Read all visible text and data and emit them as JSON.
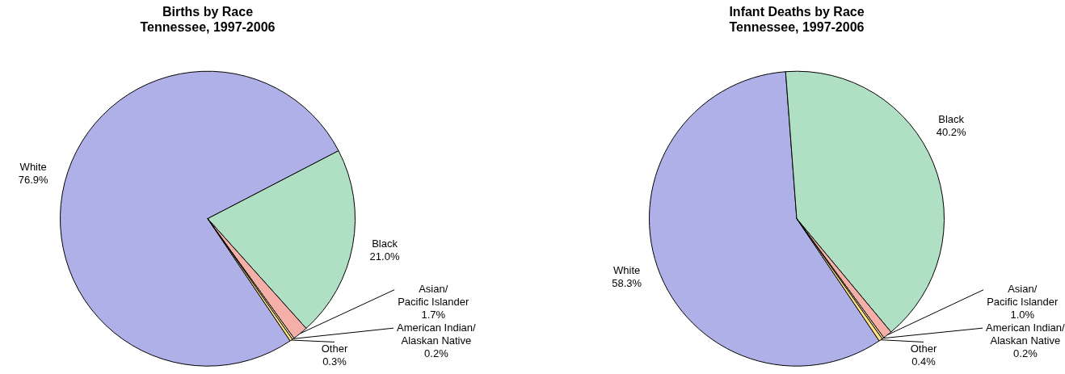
{
  "chart_data": [
    {
      "type": "pie",
      "title": "Births by Race\nTennessee, 1997-2006",
      "categories": [
        "White",
        "Black",
        "Asian/Pacific Islander",
        "American Indian/Alaskan Native",
        "Other"
      ],
      "values": [
        76.9,
        21.0,
        1.7,
        0.2,
        0.3
      ],
      "colors": [
        "#b0b0e8",
        "#b0e0c4",
        "#f4b0a8",
        "#fff0b0",
        "#ffe080"
      ],
      "value_labels": [
        "76.9%",
        "21.0%",
        "1.7%",
        "0.2%",
        "0.3%"
      ]
    },
    {
      "type": "pie",
      "title": "Infant Deaths by Race\nTennessee, 1997-2006",
      "categories": [
        "White",
        "Black",
        "Asian/Pacific Islander",
        "American Indian/Alaskan Native",
        "Other"
      ],
      "values": [
        58.3,
        40.2,
        1.0,
        0.2,
        0.4
      ],
      "colors": [
        "#b0b0e8",
        "#b0e0c4",
        "#f4b0a8",
        "#fff0b0",
        "#ffe080"
      ],
      "value_labels": [
        "58.3%",
        "40.2%",
        "1.0%",
        "0.2%",
        "0.4%"
      ]
    }
  ]
}
